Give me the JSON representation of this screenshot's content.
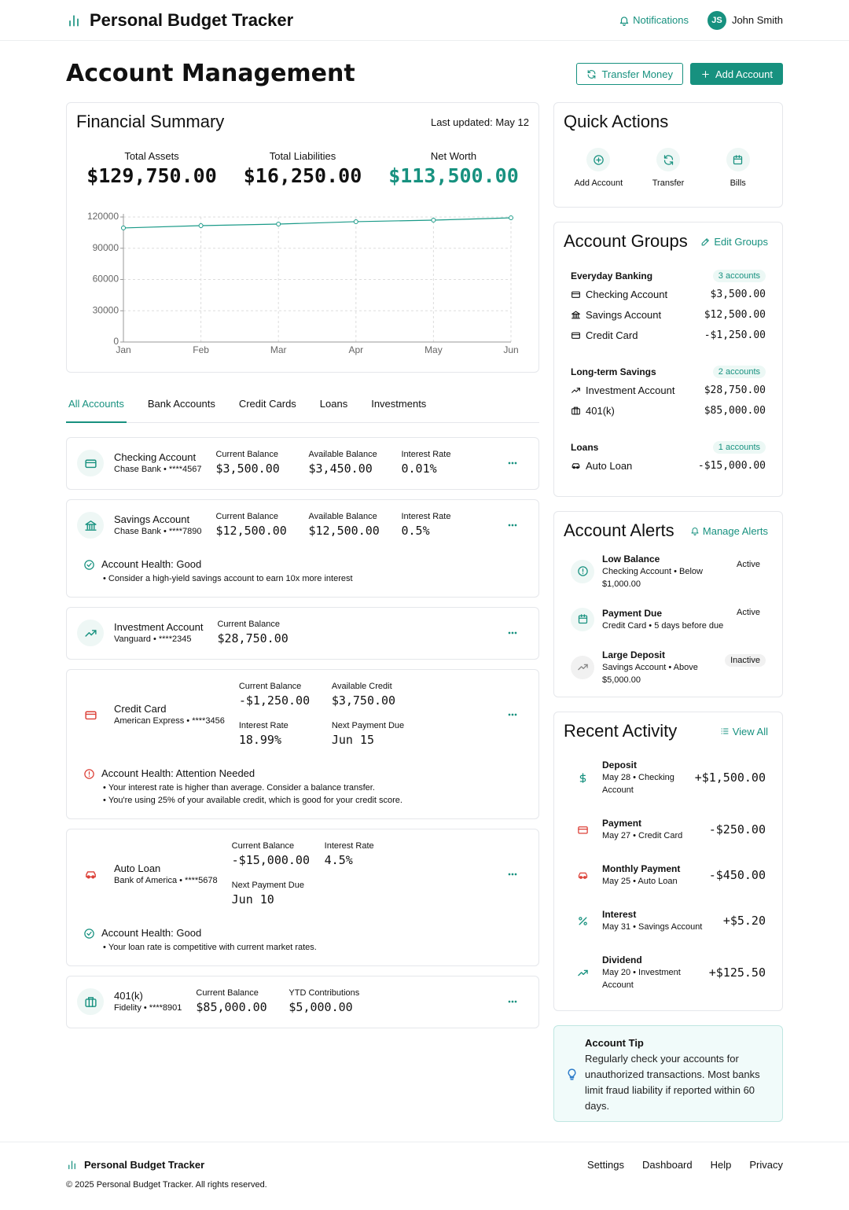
{
  "header": {
    "brand": "Personal Budget Tracker",
    "notifications": "Notifications",
    "user_initials": "JS",
    "user_name": "John Smith"
  },
  "page": {
    "title": "Account Management",
    "actions": [
      "Transfer Money",
      "Add Account"
    ]
  },
  "summary": {
    "title": "Financial Summary",
    "last_updated": "Last updated: May 12",
    "stats": [
      {
        "label": "Total Assets",
        "value": "$129,750.00"
      },
      {
        "label": "Total Liabilities",
        "value": "$16,250.00"
      },
      {
        "label": "Net Worth",
        "value": "$113,500.00"
      }
    ]
  },
  "chart_data": {
    "type": "line",
    "categories": [
      "Jan",
      "Feb",
      "Mar",
      "Apr",
      "May",
      "Jun"
    ],
    "values": [
      109500,
      111700,
      113200,
      115500,
      117000,
      119200
    ],
    "color": "#1a9a88",
    "ylim": [
      0,
      120000
    ],
    "yticks": [
      0,
      30000,
      60000,
      90000,
      120000
    ],
    "grid": true
  },
  "tabs": [
    "All Accounts",
    "Bank Accounts",
    "Credit Cards",
    "Loans",
    "Investments"
  ],
  "accounts": [
    {
      "name": "Checking Account",
      "institution": "Chase Bank • ****4567",
      "fields": [
        {
          "label": "Current Balance",
          "value": "$3,500.00"
        },
        {
          "label": "Available Balance",
          "value": "$3,450.00"
        },
        {
          "label": "Interest Rate",
          "value": "0.01%"
        }
      ]
    },
    {
      "name": "Savings Account",
      "institution": "Chase Bank • ****7890",
      "fields": [
        {
          "label": "Current Balance",
          "value": "$12,500.00"
        },
        {
          "label": "Available Balance",
          "value": "$12,500.00"
        },
        {
          "label": "Interest Rate",
          "value": "0.5%"
        }
      ],
      "health": {
        "title": "Account Health: Good",
        "notes": [
          "Consider a high-yield savings account to earn 10x more interest"
        ]
      }
    },
    {
      "name": "Investment Account",
      "institution": "Vanguard • ****2345",
      "fields": [
        {
          "label": "Current Balance",
          "value": "$28,750.00"
        }
      ]
    },
    {
      "name": "Credit Card",
      "institution": "American Express • ****3456",
      "fields": [
        {
          "label": "Current Balance",
          "value": "-$1,250.00"
        },
        {
          "label": "Available Credit",
          "value": "$3,750.00"
        },
        {
          "label": "Interest Rate",
          "value": "18.99%"
        },
        {
          "label": "Next Payment Due",
          "value": "Jun 15"
        }
      ],
      "health": {
        "title": "Account Health: Attention Needed",
        "notes": [
          "Your interest rate is higher than average. Consider a balance transfer.",
          "You're using 25% of your available credit, which is good for your credit score."
        ]
      }
    },
    {
      "name": "Auto Loan",
      "institution": "Bank of America • ****5678",
      "fields": [
        {
          "label": "Current Balance",
          "value": "-$15,000.00"
        },
        {
          "label": "Interest Rate",
          "value": "4.5%"
        },
        {
          "label": "Next Payment Due",
          "value": "Jun 10"
        }
      ],
      "health": {
        "title": "Account Health: Good",
        "notes": [
          "Your loan rate is competitive with current market rates."
        ]
      }
    },
    {
      "name": "401(k)",
      "institution": "Fidelity • ****8901",
      "fields": [
        {
          "label": "Current Balance",
          "value": "$85,000.00"
        },
        {
          "label": "YTD Contributions",
          "value": "$5,000.00"
        }
      ]
    }
  ],
  "quick_actions": {
    "title": "Quick Actions",
    "items": [
      "Add Account",
      "Transfer",
      "Bills"
    ]
  },
  "groups": {
    "title": "Account Groups",
    "edit": "Edit Groups",
    "items": [
      {
        "name": "Everyday Banking",
        "count": "3 accounts",
        "accounts": [
          {
            "name": "Checking Account",
            "balance": "$3,500.00"
          },
          {
            "name": "Savings Account",
            "balance": "$12,500.00"
          },
          {
            "name": "Credit Card",
            "balance": "-$1,250.00"
          }
        ]
      },
      {
        "name": "Long-term Savings",
        "count": "2 accounts",
        "accounts": [
          {
            "name": "Investment Account",
            "balance": "$28,750.00"
          },
          {
            "name": "401(k)",
            "balance": "$85,000.00"
          }
        ]
      },
      {
        "name": "Loans",
        "count": "1 accounts",
        "accounts": [
          {
            "name": "Auto Loan",
            "balance": "-$15,000.00"
          }
        ]
      }
    ]
  },
  "alerts": {
    "title": "Account Alerts",
    "manage": "Manage Alerts",
    "items": [
      {
        "title": "Low Balance",
        "detail": "Checking Account • Below $1,000.00",
        "status": "Active"
      },
      {
        "title": "Payment Due",
        "detail": "Credit Card • 5 days before due",
        "status": "Active"
      },
      {
        "title": "Large Deposit",
        "detail": "Savings Account • Above $5,000.00",
        "status": "Inactive"
      }
    ]
  },
  "activity": {
    "title": "Recent Activity",
    "view_all": "View All",
    "items": [
      {
        "title": "Deposit",
        "detail": "May 28 • Checking Account",
        "amount": "+$1,500.00"
      },
      {
        "title": "Payment",
        "detail": "May 27 • Credit Card",
        "amount": "-$250.00"
      },
      {
        "title": "Monthly Payment",
        "detail": "May 25 • Auto Loan",
        "amount": "-$450.00"
      },
      {
        "title": "Interest",
        "detail": "May 31 • Savings Account",
        "amount": "+$5.20"
      },
      {
        "title": "Dividend",
        "detail": "May 20 • Investment Account",
        "amount": "+$125.50"
      }
    ]
  },
  "tip": {
    "title": "Account Tip",
    "text": "Regularly check your accounts for unauthorized transactions. Most banks limit fraud liability if reported within 60 days."
  },
  "footer": {
    "brand": "Personal Budget Tracker",
    "links": [
      "Settings",
      "Dashboard",
      "Help",
      "Privacy"
    ],
    "copyright": "© 2025 Personal Budget Tracker. All rights reserved."
  }
}
